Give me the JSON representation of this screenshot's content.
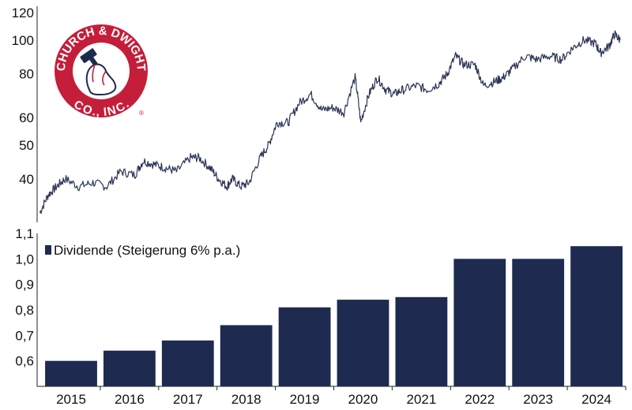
{
  "logo": {
    "name": "church-dwight-logo",
    "text_top": "CHURCH & DWIGHT",
    "text_bottom": "CO., INC.",
    "registered_mark": "®",
    "colors": {
      "ring": "#c41e3a",
      "inner": "#ffffff",
      "arm": "#1f2a4f"
    }
  },
  "chart_data": [
    {
      "type": "line",
      "scale": "log",
      "ylim": [
        30,
        125
      ],
      "y_ticks": [
        "120",
        "100",
        "80",
        "60",
        "50",
        "40"
      ],
      "y_tick_values": [
        120,
        100,
        80,
        60,
        50,
        40
      ],
      "xlim": [
        2014.5,
        2024.95
      ],
      "color": "#2b3556",
      "x": [
        2014.55,
        2014.7,
        2014.85,
        2015.0,
        2015.25,
        2015.5,
        2015.75,
        2016.0,
        2016.25,
        2016.4,
        2016.6,
        2016.8,
        2017.0,
        2017.25,
        2017.4,
        2017.6,
        2017.75,
        2017.9,
        2018.0,
        2018.15,
        2018.3,
        2018.5,
        2018.65,
        2018.8,
        2019.0,
        2019.2,
        2019.4,
        2019.6,
        2019.8,
        2020.0,
        2020.2,
        2020.3,
        2020.45,
        2020.6,
        2020.75,
        2020.9,
        2021.05,
        2021.3,
        2021.5,
        2021.7,
        2021.85,
        2022.0,
        2022.15,
        2022.35,
        2022.5,
        2022.7,
        2022.85,
        2023.0,
        2023.25,
        2023.45,
        2023.7,
        2023.9,
        2024.1,
        2024.3,
        2024.5,
        2024.6,
        2024.75,
        2024.85,
        2024.95
      ],
      "y": [
        32,
        36,
        38,
        40,
        38,
        39,
        38,
        42,
        41,
        45,
        44,
        43,
        42,
        46,
        46,
        43,
        40,
        38,
        40,
        38,
        39,
        46,
        50,
        58,
        58,
        66,
        70,
        63,
        64,
        62,
        78,
        58,
        70,
        78,
        72,
        70,
        72,
        74,
        72,
        75,
        80,
        90,
        85,
        85,
        74,
        76,
        78,
        82,
        90,
        88,
        90,
        88,
        95,
        100,
        98,
        92,
        96,
        104,
        100
      ]
    },
    {
      "type": "bar",
      "categories": [
        "2015",
        "2016",
        "2017",
        "2018",
        "2019",
        "2020",
        "2021",
        "2022",
        "2023",
        "2024"
      ],
      "values": [
        0.6,
        0.64,
        0.68,
        0.74,
        0.81,
        0.84,
        0.85,
        1.0,
        1.0,
        1.05
      ],
      "ylim": [
        0.5,
        1.1
      ],
      "y_ticks": [
        "1,1",
        "1,0",
        "0,9",
        "0,8",
        "0,7",
        "0,6"
      ],
      "y_tick_values": [
        1.1,
        1.0,
        0.9,
        0.8,
        0.7,
        0.6
      ],
      "series_name": "Dividende (Steigerung 6% p.a.)",
      "color": "#1e2a4f"
    }
  ]
}
